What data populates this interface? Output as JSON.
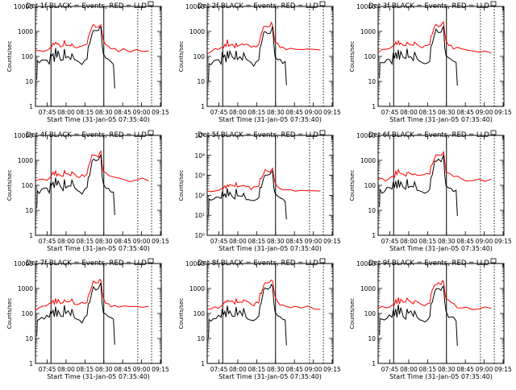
{
  "chart_data": [
    {
      "type": "line",
      "title": "Det 1f BLACK = Events, RED = LLD",
      "xlabel": "Start Time (31-Jan-05 07:35:40)",
      "ylabel": "Counts/sec",
      "y_scale": "log",
      "ylim": [
        1,
        10000
      ],
      "y_ticks": [
        "1",
        "10",
        "100",
        "1000",
        "10000"
      ],
      "x_ticks": [
        "07:45",
        "08:00",
        "08:15",
        "08:30",
        "08:45",
        "09:00",
        "09:15"
      ],
      "xlim_minutes_after_start": [
        0,
        100
      ],
      "solid_vlines": [
        "07:48",
        "08:30"
      ],
      "dotted_vlines": [
        "08:57",
        "09:08"
      ],
      "series": [
        {
          "name": "Events",
          "color": "#000000",
          "level": "black"
        },
        {
          "name": "LLD",
          "color": "#ff0000",
          "level": "red"
        }
      ]
    },
    {
      "type": "line",
      "title": "Det 2f BLACK = Events, RED = LLD",
      "xlabel": "Start Time (31-Jan-05 07:35:40)",
      "ylabel": "Counts/sec",
      "y_scale": "log",
      "ylim": [
        1,
        10000
      ],
      "y_ticks": [
        "1",
        "10",
        "100",
        "1000",
        "10000"
      ],
      "x_ticks": [
        "07:45",
        "08:00",
        "08:15",
        "08:30",
        "08:45",
        "09:00",
        "09:15"
      ],
      "xlim_minutes_after_start": [
        0,
        100
      ],
      "solid_vlines": [
        "07:48",
        "08:30"
      ],
      "dotted_vlines": [
        "08:57",
        "09:08"
      ],
      "series": [
        {
          "name": "Events",
          "color": "#000000"
        },
        {
          "name": "LLD",
          "color": "#ff0000"
        }
      ]
    },
    {
      "type": "line",
      "title": "Det 3f BLACK = Events, RED = LLD",
      "xlabel": "Start Time (31-Jan-05 07:35:40)",
      "ylabel": "Counts/sec",
      "y_scale": "log",
      "ylim": [
        1,
        10000
      ],
      "y_ticks": [
        "1",
        "10",
        "100",
        "1000",
        "10000"
      ],
      "x_ticks": [
        "07:45",
        "08:00",
        "08:15",
        "08:30",
        "08:45",
        "09:00",
        "09:15"
      ],
      "xlim_minutes_after_start": [
        0,
        100
      ],
      "solid_vlines": [
        "07:48",
        "08:30"
      ],
      "dotted_vlines": [
        "08:57",
        "09:08"
      ],
      "series": [
        {
          "name": "Events",
          "color": "#000000"
        },
        {
          "name": "LLD",
          "color": "#ff0000"
        }
      ]
    },
    {
      "type": "line",
      "title": "Det 4f BLACK = Events, RED = LLD",
      "xlabel": "Start Time (31-Jan-05 07:35:40)",
      "ylabel": "Counts/sec",
      "y_scale": "log",
      "ylim": [
        1,
        10000
      ],
      "y_ticks": [
        "1",
        "10",
        "100",
        "1000",
        "10000"
      ],
      "x_ticks": [
        "07:45",
        "08:00",
        "08:15",
        "08:30",
        "08:45",
        "09:00",
        "09:15"
      ],
      "xlim_minutes_after_start": [
        0,
        100
      ],
      "solid_vlines": [
        "07:48",
        "08:30"
      ],
      "dotted_vlines": [
        "08:57",
        "09:08"
      ],
      "series": [
        {
          "name": "Events",
          "color": "#000000"
        },
        {
          "name": "LLD",
          "color": "#ff0000"
        }
      ]
    },
    {
      "type": "line",
      "title": "Det 5f BLACK = Events, RED = LLD",
      "xlabel": "Start Time (31-Jan-05 07:35:40)",
      "ylabel": "Counts/sec",
      "y_scale": "log",
      "ylim": [
        1,
        100000
      ],
      "y_ticks": [
        "10⁰",
        "10¹",
        "10²",
        "10³",
        "10⁴",
        "10⁵"
      ],
      "x_ticks": [
        "07:45",
        "08:00",
        "08:15",
        "08:30",
        "08:45",
        "09:00",
        "09:15"
      ],
      "xlim_minutes_after_start": [
        0,
        100
      ],
      "solid_vlines": [
        "07:48",
        "08:30"
      ],
      "dotted_vlines": [
        "08:57",
        "09:08"
      ],
      "series": [
        {
          "name": "Events",
          "color": "#000000"
        },
        {
          "name": "LLD",
          "color": "#ff0000"
        }
      ]
    },
    {
      "type": "line",
      "title": "Det 6f BLACK = Events, RED = LLD",
      "xlabel": "Start Time (31-Jan-05 07:35:40)",
      "ylabel": "Counts/sec",
      "y_scale": "log",
      "ylim": [
        1,
        10000
      ],
      "y_ticks": [
        "1",
        "10",
        "100",
        "1000",
        "10000"
      ],
      "x_ticks": [
        "07:45",
        "08:00",
        "08:15",
        "08:30",
        "08:45",
        "09:00",
        "09:15"
      ],
      "xlim_minutes_after_start": [
        0,
        100
      ],
      "solid_vlines": [
        "07:48",
        "08:30"
      ],
      "dotted_vlines": [
        "08:57",
        "09:08"
      ],
      "series": [
        {
          "name": "Events",
          "color": "#000000"
        },
        {
          "name": "LLD",
          "color": "#ff0000"
        }
      ]
    },
    {
      "type": "line",
      "title": "Det 7f BLACK = Events, RED = LLD",
      "xlabel": "Start Time (31-Jan-05 07:35:40)",
      "ylabel": "Counts/sec",
      "y_scale": "log",
      "ylim": [
        1,
        10000
      ],
      "y_ticks": [
        "1",
        "10",
        "100",
        "1000",
        "10000"
      ],
      "x_ticks": [
        "07:45",
        "08:00",
        "08:15",
        "08:30",
        "08:45",
        "09:00",
        "09:15"
      ],
      "xlim_minutes_after_start": [
        0,
        100
      ],
      "solid_vlines": [
        "07:48",
        "08:30"
      ],
      "dotted_vlines": [
        "08:57",
        "09:08"
      ],
      "series": [
        {
          "name": "Events",
          "color": "#000000"
        },
        {
          "name": "LLD",
          "color": "#ff0000"
        }
      ]
    },
    {
      "type": "line",
      "title": "Det 8f BLACK = Events, RED = LLD",
      "xlabel": "Start Time (31-Jan-05 07:35:40)",
      "ylabel": "Counts/sec",
      "y_scale": "log",
      "ylim": [
        1,
        10000
      ],
      "y_ticks": [
        "1",
        "10",
        "100",
        "1000",
        "10000"
      ],
      "x_ticks": [
        "07:45",
        "08:00",
        "08:15",
        "08:30",
        "08:45",
        "09:00",
        "09:15"
      ],
      "xlim_minutes_after_start": [
        0,
        100
      ],
      "solid_vlines": [
        "07:48",
        "08:30"
      ],
      "dotted_vlines": [
        "08:57",
        "09:08"
      ],
      "series": [
        {
          "name": "Events",
          "color": "#000000"
        },
        {
          "name": "LLD",
          "color": "#ff0000"
        }
      ]
    },
    {
      "type": "line",
      "title": "Det 9f BLACK = Events, RED = LLD",
      "xlabel": "Start Time (31-Jan-05 07:35:40)",
      "ylabel": "Counts/sec",
      "y_scale": "log",
      "ylim": [
        1,
        10000
      ],
      "y_ticks": [
        "1",
        "10",
        "100",
        "1000",
        "10000"
      ],
      "x_ticks": [
        "07:45",
        "08:00",
        "08:15",
        "08:30",
        "08:45",
        "09:00",
        "09:15"
      ],
      "xlim_minutes_after_start": [
        0,
        100
      ],
      "solid_vlines": [
        "07:48",
        "08:30"
      ],
      "dotted_vlines": [
        "08:57",
        "09:08"
      ],
      "series": [
        {
          "name": "Events",
          "color": "#000000"
        },
        {
          "name": "LLD",
          "color": "#ff0000"
        }
      ]
    }
  ],
  "profile": {
    "events": [
      [
        1,
        12
      ],
      [
        1.5,
        60
      ],
      [
        3,
        55
      ],
      [
        5,
        65
      ],
      [
        7,
        70
      ],
      [
        9,
        75
      ],
      [
        11,
        60
      ],
      [
        12,
        140
      ],
      [
        13,
        90
      ],
      [
        14,
        130
      ],
      [
        15,
        70
      ],
      [
        16,
        200
      ],
      [
        17,
        90
      ],
      [
        18,
        150
      ],
      [
        20,
        80
      ],
      [
        22,
        70
      ],
      [
        23,
        180
      ],
      [
        24,
        90
      ],
      [
        26,
        110
      ],
      [
        28,
        80
      ],
      [
        29,
        140
      ],
      [
        31,
        70
      ],
      [
        33,
        60
      ],
      [
        35,
        52
      ],
      [
        37,
        48
      ],
      [
        39,
        60
      ],
      [
        41,
        75
      ],
      [
        42,
        220
      ],
      [
        43,
        280
      ],
      [
        45,
        900
      ],
      [
        46,
        1050
      ],
      [
        48,
        950
      ],
      [
        50,
        1000
      ],
      [
        51,
        1300
      ],
      [
        52,
        1450
      ],
      [
        53,
        250
      ],
      [
        54,
        110
      ],
      [
        56,
        80
      ],
      [
        58,
        70
      ],
      [
        60,
        62
      ],
      [
        62,
        55
      ],
      [
        63,
        6
      ]
    ],
    "lld": [
      [
        0,
        150
      ],
      [
        3,
        170
      ],
      [
        6,
        175
      ],
      [
        9,
        180
      ],
      [
        11,
        220
      ],
      [
        13,
        250
      ],
      [
        14,
        330
      ],
      [
        15,
        260
      ],
      [
        16,
        400
      ],
      [
        17,
        280
      ],
      [
        18,
        320
      ],
      [
        20,
        280
      ],
      [
        22,
        260
      ],
      [
        23,
        380
      ],
      [
        24,
        300
      ],
      [
        26,
        320
      ],
      [
        28,
        280
      ],
      [
        29,
        330
      ],
      [
        31,
        270
      ],
      [
        33,
        255
      ],
      [
        35,
        230
      ],
      [
        37,
        240
      ],
      [
        39,
        260
      ],
      [
        41,
        290
      ],
      [
        42,
        600
      ],
      [
        43,
        750
      ],
      [
        45,
        1450
      ],
      [
        46,
        1700
      ],
      [
        48,
        1550
      ],
      [
        50,
        1600
      ],
      [
        51,
        2000
      ],
      [
        52,
        2100
      ],
      [
        53,
        800
      ],
      [
        54,
        400
      ],
      [
        56,
        300
      ],
      [
        58,
        250
      ],
      [
        60,
        220
      ],
      [
        63,
        200
      ],
      [
        66,
        180
      ],
      [
        70,
        175
      ],
      [
        75,
        170
      ],
      [
        80,
        170
      ],
      [
        85,
        168
      ],
      [
        90,
        165
      ]
    ]
  }
}
